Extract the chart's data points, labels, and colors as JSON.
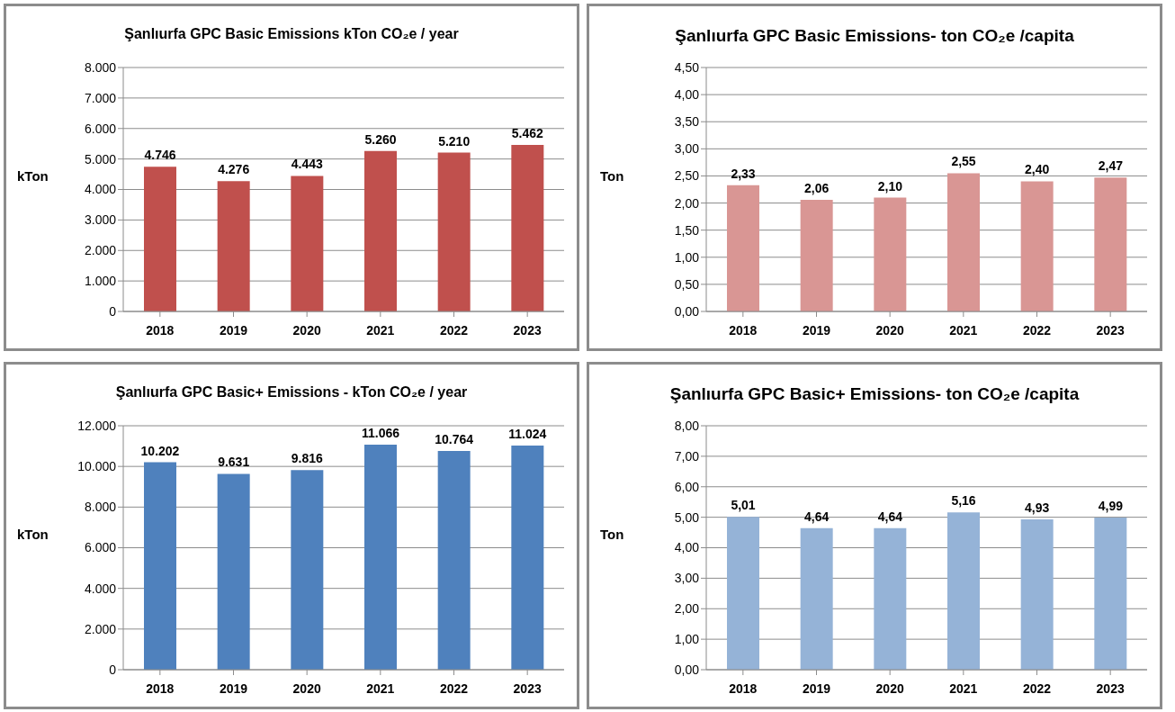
{
  "chart_data": [
    {
      "type": "bar",
      "title": "Şanlıurfa GPC Basic Emissions  kTon CO₂e / year",
      "ylabel": "kTon",
      "categories": [
        "2018",
        "2019",
        "2020",
        "2021",
        "2022",
        "2023"
      ],
      "values": [
        4746,
        4276,
        4443,
        5260,
        5210,
        5462
      ],
      "value_labels": [
        "4.746",
        "4.276",
        "4.443",
        "5.260",
        "5.210",
        "5.462"
      ],
      "color": "#c0504d",
      "ylim": [
        0,
        8000
      ],
      "yticks": [
        0,
        {
          "value": 1000,
          "label": "1.000"
        },
        {
          "value": 2000,
          "label": "2.000"
        },
        {
          "value": 3000,
          "label": "3.000"
        },
        {
          "value": 4000,
          "label": "4.000"
        },
        {
          "value": 5000,
          "label": "5.000"
        },
        {
          "value": 6000,
          "label": "6.000"
        },
        {
          "value": 7000,
          "label": "7.000"
        },
        {
          "value": 8000,
          "label": "8.000"
        }
      ],
      "grid": "y",
      "legend": false
    },
    {
      "type": "bar",
      "title": "Şanlıurfa  GPC Basic Emissions- ton CO₂e /capita",
      "ylabel": "Ton",
      "categories": [
        "2018",
        "2019",
        "2020",
        "2021",
        "2022",
        "2023"
      ],
      "values": [
        2.33,
        2.06,
        2.1,
        2.55,
        2.4,
        2.47
      ],
      "value_labels": [
        "2,33",
        "2,06",
        "2,10",
        "2,55",
        "2,40",
        "2,47"
      ],
      "color": "#d99694",
      "ylim": [
        0,
        4.5
      ],
      "yticks": [
        {
          "value": 0,
          "label": "0,00"
        },
        {
          "value": 0.5,
          "label": "0,50"
        },
        {
          "value": 1,
          "label": "1,00"
        },
        {
          "value": 1.5,
          "label": "1,50"
        },
        {
          "value": 2,
          "label": "2,00"
        },
        {
          "value": 2.5,
          "label": "2,50"
        },
        {
          "value": 3,
          "label": "3,00"
        },
        {
          "value": 3.5,
          "label": "3,50"
        },
        {
          "value": 4,
          "label": "4,00"
        },
        {
          "value": 4.5,
          "label": "4,50"
        }
      ],
      "grid": "y",
      "legend": false
    },
    {
      "type": "bar",
      "title": "Şanlıurfa GPC Basic+ Emissions - kTon CO₂e / year",
      "ylabel": "kTon",
      "categories": [
        "2018",
        "2019",
        "2020",
        "2021",
        "2022",
        "2023"
      ],
      "values": [
        10202,
        9631,
        9816,
        11066,
        10764,
        11024
      ],
      "value_labels": [
        "10.202",
        "9.631",
        "9.816",
        "11.066",
        "10.764",
        "11.024"
      ],
      "color": "#4f81bd",
      "ylim": [
        0,
        12000
      ],
      "yticks": [
        0,
        {
          "value": 2000,
          "label": "2.000"
        },
        {
          "value": 4000,
          "label": "4.000"
        },
        {
          "value": 6000,
          "label": "6.000"
        },
        {
          "value": 8000,
          "label": "8.000"
        },
        {
          "value": 10000,
          "label": "10.000"
        },
        {
          "value": 12000,
          "label": "12.000"
        }
      ],
      "grid": "y",
      "legend": false
    },
    {
      "type": "bar",
      "title": "Şanlıurfa GPC Basic+ Emissions- ton CO₂e /capita",
      "ylabel": "Ton",
      "categories": [
        "2018",
        "2019",
        "2020",
        "2021",
        "2022",
        "2023"
      ],
      "values": [
        5.01,
        4.64,
        4.64,
        5.16,
        4.93,
        4.99
      ],
      "value_labels": [
        "5,01",
        "4,64",
        "4,64",
        "5,16",
        "4,93",
        "4,99"
      ],
      "color": "#95b3d7",
      "ylim": [
        0,
        8
      ],
      "yticks": [
        {
          "value": 0,
          "label": "0,00"
        },
        {
          "value": 1,
          "label": "1,00"
        },
        {
          "value": 2,
          "label": "2,00"
        },
        {
          "value": 3,
          "label": "3,00"
        },
        {
          "value": 4,
          "label": "4,00"
        },
        {
          "value": 5,
          "label": "5,00"
        },
        {
          "value": 6,
          "label": "6,00"
        },
        {
          "value": 7,
          "label": "7,00"
        },
        {
          "value": 8,
          "label": "8,00"
        }
      ],
      "grid": "y",
      "legend": false
    }
  ]
}
